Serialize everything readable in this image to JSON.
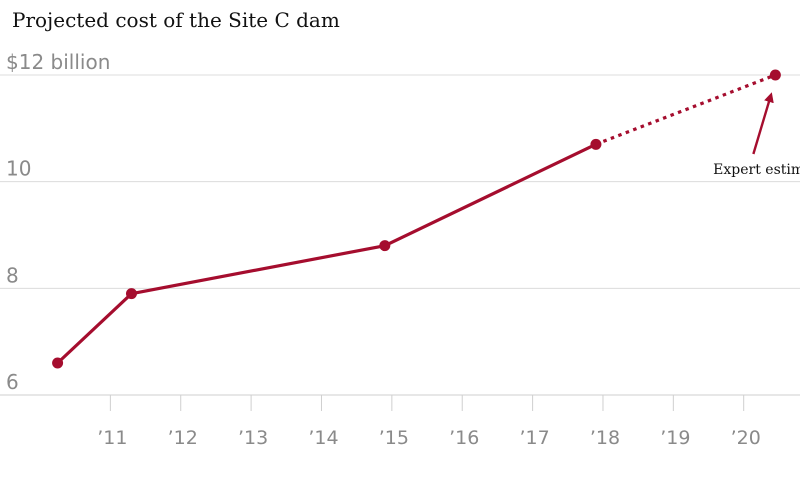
{
  "chart_data": {
    "type": "line",
    "title": "Projected cost of the Site C dam",
    "xlabel": "",
    "ylabel": "",
    "xlim": [
      2010,
      2020.8
    ],
    "ylim": [
      6,
      12
    ],
    "y_ticks": [
      {
        "value": 12,
        "label": "$12 billion"
      },
      {
        "value": 10,
        "label": "10"
      },
      {
        "value": 8,
        "label": "8"
      },
      {
        "value": 6,
        "label": "6"
      }
    ],
    "x_ticks": [
      {
        "value": 2011,
        "label": "’11"
      },
      {
        "value": 2012,
        "label": "’12"
      },
      {
        "value": 2013,
        "label": "’13"
      },
      {
        "value": 2014,
        "label": "’14"
      },
      {
        "value": 2015,
        "label": "’15"
      },
      {
        "value": 2016,
        "label": "’16"
      },
      {
        "value": 2017,
        "label": "’17"
      },
      {
        "value": 2018,
        "label": "’18"
      },
      {
        "value": 2019,
        "label": "’19"
      },
      {
        "value": 2020,
        "label": "’20"
      }
    ],
    "series": [
      {
        "color": "#a50d2e",
        "points": [
          {
            "x": 2010.25,
            "y": 6.6
          },
          {
            "x": 2011.3,
            "y": 7.9
          },
          {
            "x": 2014.9,
            "y": 8.8
          },
          {
            "x": 2017.9,
            "y": 10.7
          }
        ]
      },
      {
        "color": "#a50d2e",
        "style": "dotted",
        "points": [
          {
            "x": 2017.9,
            "y": 10.7
          },
          {
            "x": 2020.45,
            "y": 12.0
          }
        ]
      }
    ],
    "annotations": [
      {
        "text": "Expert estimates",
        "x": 2020.45,
        "y": 12.0
      }
    ],
    "grid": true
  }
}
